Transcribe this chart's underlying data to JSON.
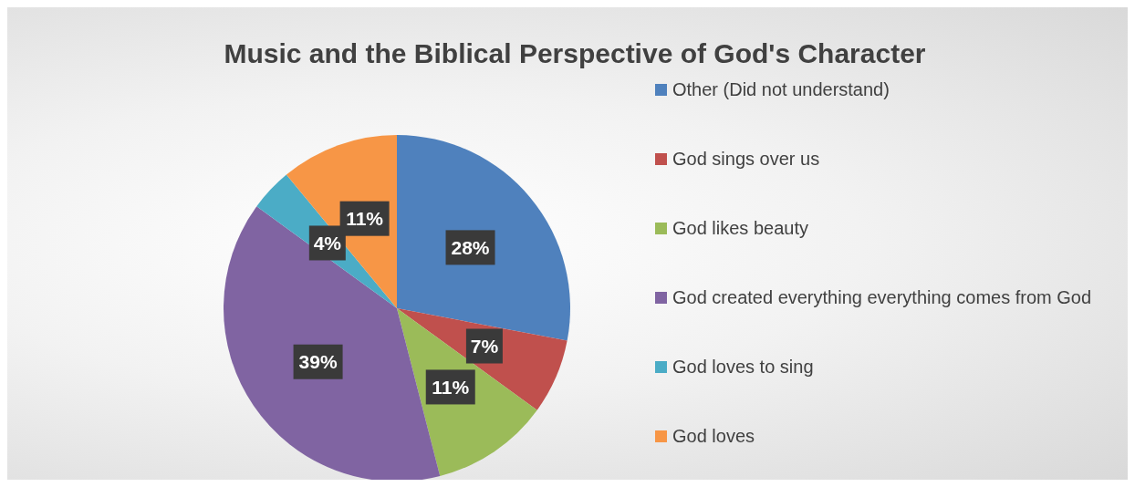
{
  "chart_data": {
    "type": "pie",
    "title": "Music and the Biblical Perspective of God's Character",
    "categories": [
      "Other (Did not understand)",
      "God sings over us",
      "God likes beauty",
      "God created everything everything comes from God",
      "God loves to sing",
      "God loves"
    ],
    "values": [
      28,
      7,
      11,
      39,
      4,
      11
    ],
    "colors": [
      "#4f81bd",
      "#c0504d",
      "#9bbb59",
      "#8064a2",
      "#4bacc6",
      "#f79646"
    ],
    "value_labels": [
      "28%",
      "7%",
      "11%",
      "39%",
      "4%",
      "11%"
    ],
    "legend": "right"
  }
}
